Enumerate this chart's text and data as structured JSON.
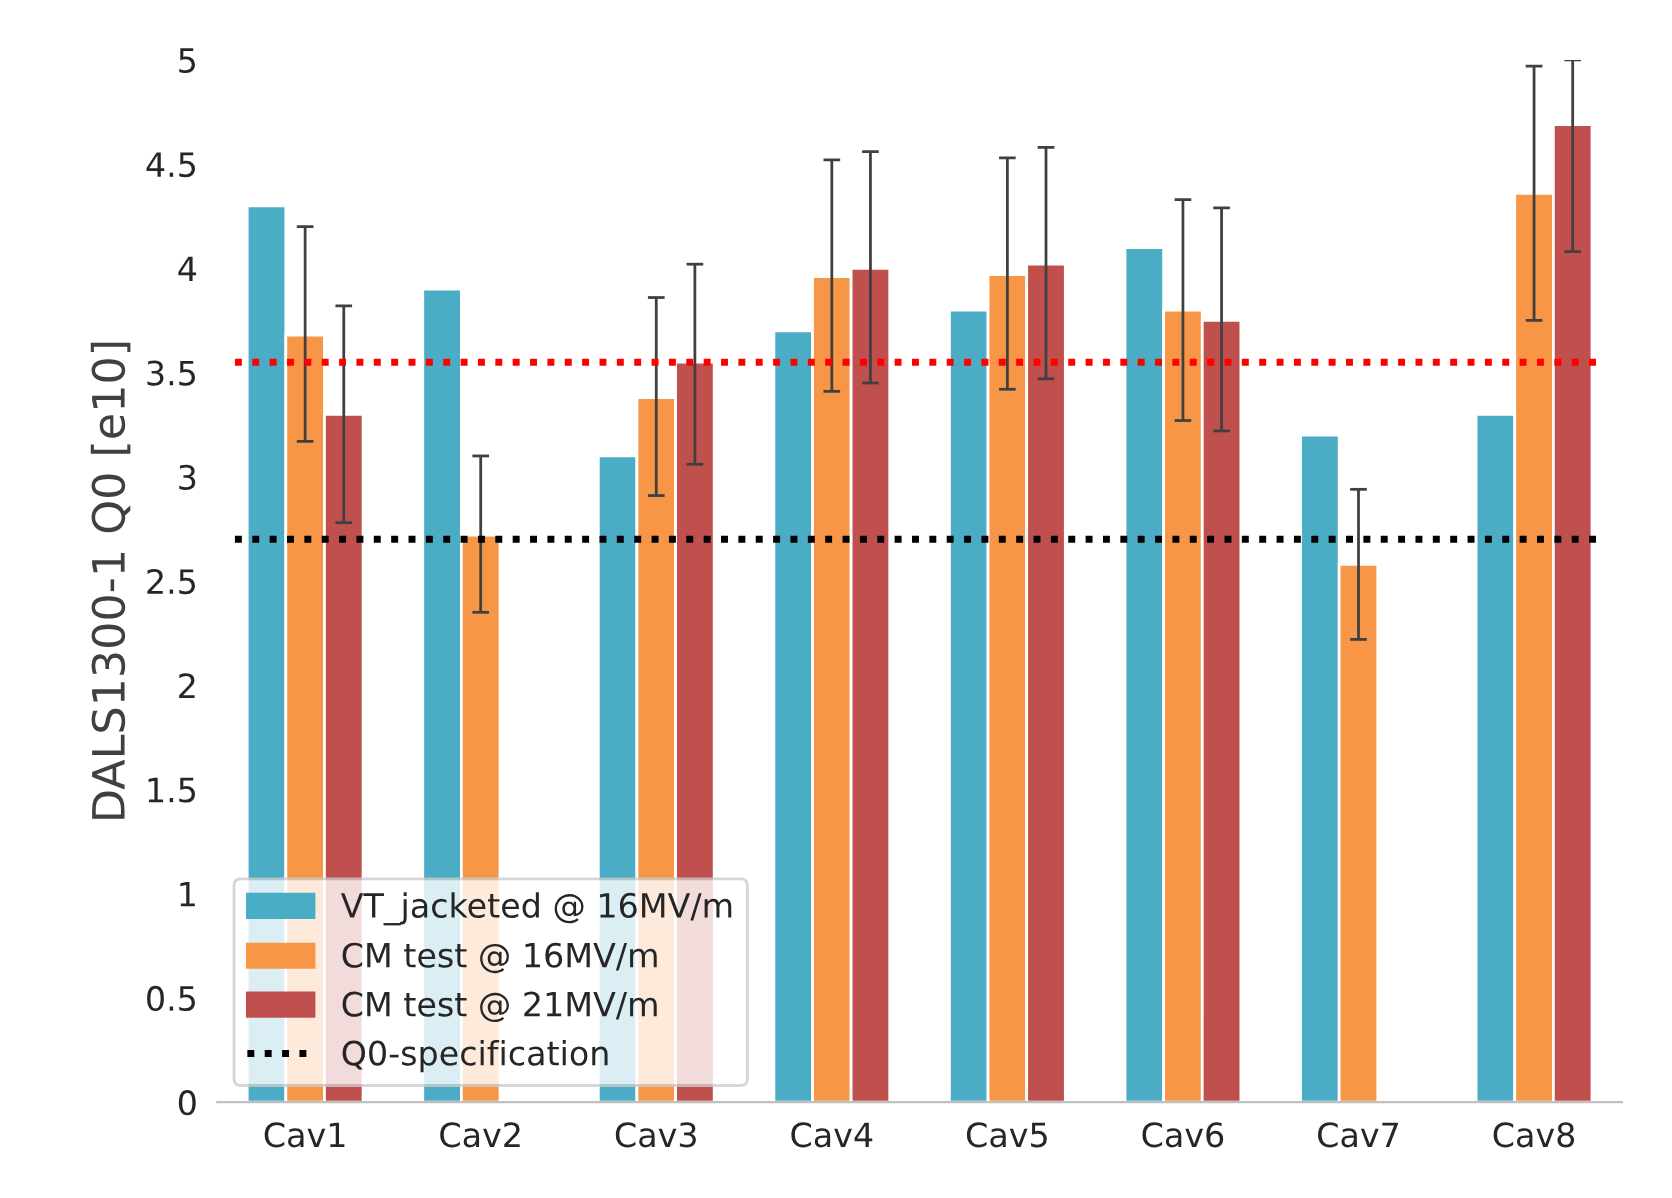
{
  "chart_data": {
    "type": "bar",
    "ylabel": "DALS1300-1 Q0 [e10]",
    "categories": [
      "Cav1",
      "Cav2",
      "Cav3",
      "Cav4",
      "Cav5",
      "Cav6",
      "Cav7",
      "Cav8"
    ],
    "series": [
      {
        "name": "VT_jacketed @ 16MV/m",
        "color": "#4bacc6",
        "values": [
          4.3,
          3.9,
          3.1,
          3.7,
          3.8,
          4.1,
          3.2,
          3.3
        ]
      },
      {
        "name": "CM test @ 16MV/m",
        "color": "#f79646",
        "values": [
          3.68,
          2.72,
          3.38,
          3.96,
          3.97,
          3.8,
          2.58,
          4.36
        ],
        "errors": [
          [
            3.17,
            4.2
          ],
          [
            2.35,
            3.1
          ],
          [
            2.91,
            3.86
          ],
          [
            3.41,
            4.52
          ],
          [
            3.42,
            4.53
          ],
          [
            3.27,
            4.33
          ],
          [
            2.22,
            2.94
          ],
          [
            3.75,
            4.97
          ]
        ]
      },
      {
        "name": "CM test @ 21MV/m",
        "color": "#c0504d",
        "values": [
          3.3,
          null,
          3.55,
          4.0,
          4.02,
          3.75,
          null,
          4.69
        ],
        "errors": [
          [
            2.78,
            3.82
          ],
          null,
          [
            3.06,
            4.02
          ],
          [
            3.45,
            4.56
          ],
          [
            3.47,
            4.58
          ],
          [
            3.22,
            4.29
          ],
          null,
          [
            4.08,
            5.0
          ]
        ]
      }
    ],
    "ref_lines": [
      {
        "axis": "y",
        "value": 3.55,
        "color": "#ff0000",
        "line_style": "dotted"
      },
      {
        "axis": "y",
        "value": 2.7,
        "label": "Q0-specification",
        "color": "#000000",
        "line_style": "dotted"
      }
    ],
    "ylim": [
      0,
      5
    ],
    "yticks": [
      0,
      0.5,
      1,
      1.5,
      2,
      2.5,
      3,
      3.5,
      4,
      4.5,
      5
    ],
    "grid": false,
    "legend": "bottom left"
  }
}
